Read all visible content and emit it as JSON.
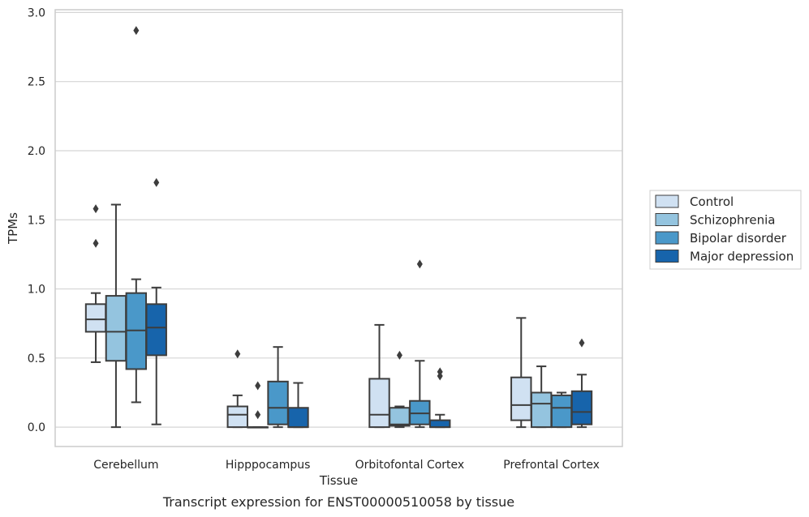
{
  "caption": "Transcript expression for ENST00000510058 by tissue",
  "chart_data": {
    "type": "box",
    "title": "",
    "xlabel": "Tissue",
    "ylabel": "TPMs",
    "ylim": [
      -0.14,
      3.02
    ],
    "yticks": [
      "0.0",
      "0.5",
      "1.0",
      "1.5",
      "2.0",
      "2.5",
      "3.0"
    ],
    "grid": "horizontal",
    "legend_position": "right",
    "categories": [
      "Cerebellum",
      "Hipppocampus",
      "Orbitofontal Cortex",
      "Prefrontal Cortex"
    ],
    "series": [
      {
        "name": "Control",
        "color": "#d0e1f2",
        "boxes": [
          {
            "whisker_low": 0.47,
            "q1": 0.69,
            "median": 0.78,
            "q3": 0.89,
            "whisker_high": 0.97,
            "outliers": [
              1.58,
              1.33
            ]
          },
          {
            "whisker_low": 0.0,
            "q1": 0.0,
            "median": 0.09,
            "q3": 0.15,
            "whisker_high": 0.23,
            "outliers": [
              0.53
            ]
          },
          {
            "whisker_low": 0.0,
            "q1": 0.0,
            "median": 0.09,
            "q3": 0.35,
            "whisker_high": 0.74,
            "outliers": []
          },
          {
            "whisker_low": 0.0,
            "q1": 0.05,
            "median": 0.16,
            "q3": 0.36,
            "whisker_high": 0.79,
            "outliers": []
          }
        ]
      },
      {
        "name": "Schizophrenia",
        "color": "#94c4df",
        "boxes": [
          {
            "whisker_low": 0.0,
            "q1": 0.48,
            "median": 0.69,
            "q3": 0.95,
            "whisker_high": 1.61,
            "outliers": []
          },
          {
            "whisker_low": 0.0,
            "q1": 0.0,
            "median": 0.0,
            "q3": 0.0,
            "whisker_high": 0.0,
            "outliers": [
              0.3,
              0.09
            ]
          },
          {
            "whisker_low": 0.0,
            "q1": 0.01,
            "median": 0.02,
            "q3": 0.14,
            "whisker_high": 0.15,
            "outliers": [
              0.52
            ]
          },
          {
            "whisker_low": 0.0,
            "q1": 0.0,
            "median": 0.17,
            "q3": 0.25,
            "whisker_high": 0.44,
            "outliers": []
          }
        ]
      },
      {
        "name": "Bipolar disorder",
        "color": "#4a98c9",
        "boxes": [
          {
            "whisker_low": 0.18,
            "q1": 0.42,
            "median": 0.7,
            "q3": 0.97,
            "whisker_high": 1.07,
            "outliers": [
              2.87
            ]
          },
          {
            "whisker_low": 0.0,
            "q1": 0.02,
            "median": 0.14,
            "q3": 0.33,
            "whisker_high": 0.58,
            "outliers": []
          },
          {
            "whisker_low": 0.0,
            "q1": 0.02,
            "median": 0.1,
            "q3": 0.19,
            "whisker_high": 0.48,
            "outliers": [
              1.18
            ]
          },
          {
            "whisker_low": 0.0,
            "q1": 0.0,
            "median": 0.14,
            "q3": 0.23,
            "whisker_high": 0.25,
            "outliers": []
          }
        ]
      },
      {
        "name": "Major depression",
        "color": "#1764ab",
        "boxes": [
          {
            "whisker_low": 0.02,
            "q1": 0.52,
            "median": 0.72,
            "q3": 0.89,
            "whisker_high": 1.01,
            "outliers": [
              1.77
            ]
          },
          {
            "whisker_low": 0.0,
            "q1": 0.0,
            "median": 0.0,
            "q3": 0.14,
            "whisker_high": 0.32,
            "outliers": []
          },
          {
            "whisker_low": 0.0,
            "q1": 0.0,
            "median": 0.0,
            "q3": 0.05,
            "whisker_high": 0.09,
            "outliers": [
              0.4,
              0.37
            ]
          },
          {
            "whisker_low": 0.0,
            "q1": 0.02,
            "median": 0.11,
            "q3": 0.26,
            "whisker_high": 0.38,
            "outliers": [
              0.61
            ]
          }
        ]
      }
    ]
  }
}
